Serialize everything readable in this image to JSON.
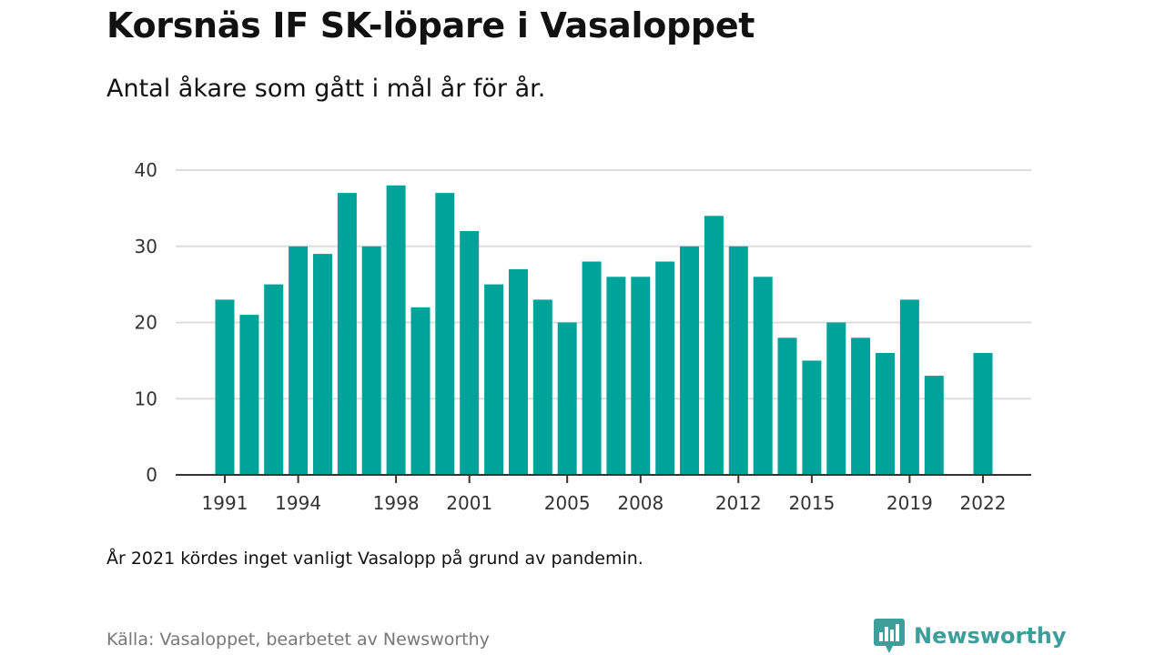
{
  "title": "Korsnäs IF SK-löpare i Vasaloppet",
  "subtitle": "Antal åkare som gått i mål år för år.",
  "note": "År 2021 kördes inget vanligt Vasalopp på grund av pandemin.",
  "source": "Källa: Vasaloppet, bearbetet av Newsworthy",
  "brand": {
    "name": "Newsworthy",
    "icon": "newsworthy-logo-icon",
    "color": "#3d9e9a"
  },
  "colors": {
    "bar": "#00a39a",
    "grid": "#dddddd",
    "baseline": "#333333"
  },
  "chart_data": {
    "type": "bar",
    "title": "Korsnäs IF SK-löpare i Vasaloppet",
    "subtitle": "Antal åkare som gått i mål år för år.",
    "xlabel": "",
    "ylabel": "",
    "ylim": [
      0,
      40
    ],
    "yticks": [
      0,
      10,
      20,
      30,
      40
    ],
    "xtick_labels": [
      "1991",
      "1994",
      "1998",
      "2001",
      "2005",
      "2008",
      "2012",
      "2015",
      "2019",
      "2022"
    ],
    "categories": [
      1991,
      1992,
      1993,
      1994,
      1995,
      1996,
      1997,
      1998,
      1999,
      2000,
      2001,
      2002,
      2003,
      2004,
      2005,
      2006,
      2007,
      2008,
      2009,
      2010,
      2011,
      2012,
      2013,
      2014,
      2015,
      2016,
      2017,
      2018,
      2019,
      2020,
      2021,
      2022
    ],
    "values": [
      23,
      21,
      25,
      30,
      29,
      37,
      30,
      38,
      22,
      37,
      32,
      25,
      27,
      23,
      20,
      28,
      26,
      26,
      28,
      30,
      34,
      30,
      26,
      18,
      15,
      20,
      18,
      16,
      23,
      13,
      null,
      16
    ],
    "grid": true,
    "legend": "none"
  }
}
